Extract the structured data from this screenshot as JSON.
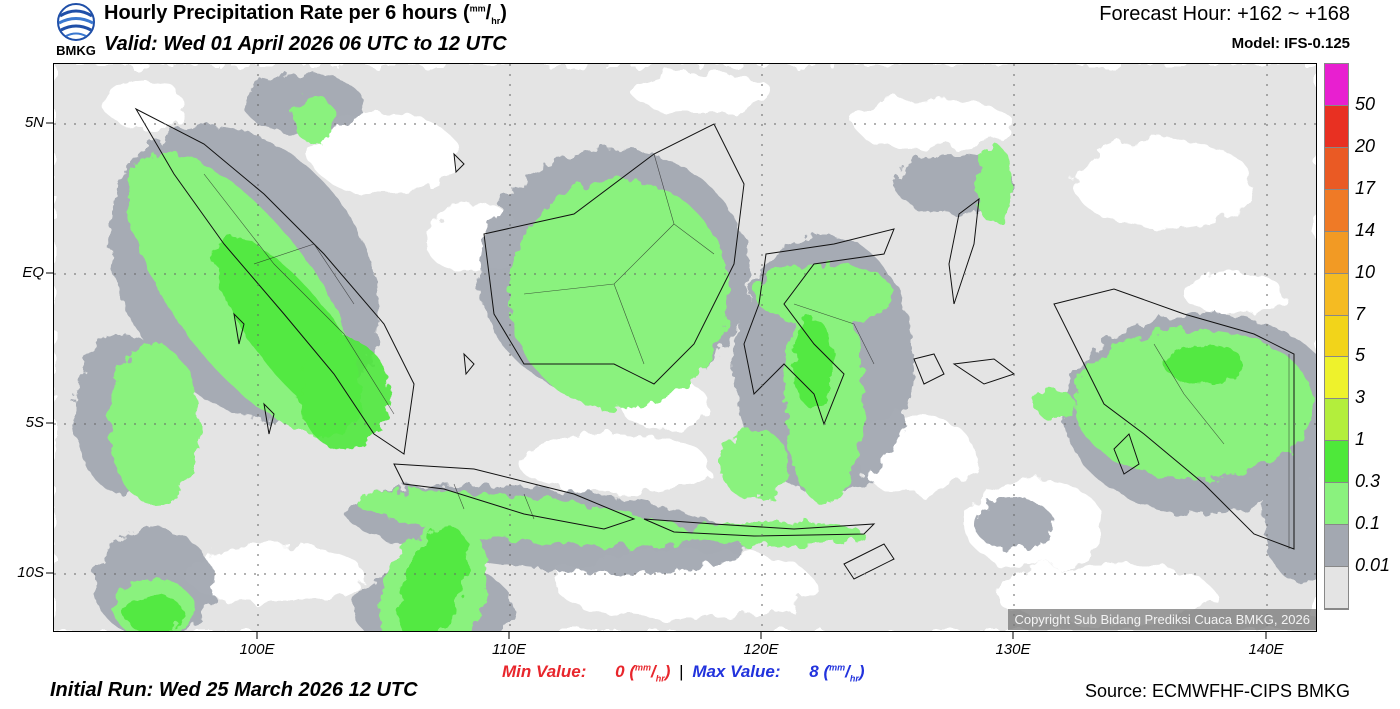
{
  "header": {
    "title": "Hourly Precipitation Rate per 6 hours",
    "title_unit_num": "mm",
    "title_unit_den": "hr",
    "valid": "Valid: Wed 01 April 2026 06 UTC to 12 UTC",
    "forecast_hour": "Forecast Hour: +162 ~ +168",
    "model": "Model: IFS-0.125",
    "logo_text": "BMKG"
  },
  "map": {
    "lat_labels": [
      "5N",
      "EQ",
      "5S",
      "10S"
    ],
    "lon_labels": [
      "100E",
      "110E",
      "120E",
      "130E",
      "140E"
    ],
    "copyright": "Copyright Sub Bidang Prediksi Cuaca BMKG, 2026"
  },
  "colorbar": {
    "labels": [
      "50",
      "20",
      "17",
      "14",
      "10",
      "7",
      "5",
      "3",
      "1",
      "0.3",
      "0.1",
      "0.01"
    ],
    "colors": [
      "#e81fd0",
      "#e83022",
      "#ea5a24",
      "#ef7a26",
      "#f29a24",
      "#f5bb22",
      "#f2d41a",
      "#eef22c",
      "#b3ee3c",
      "#4ee83a",
      "#8af27e",
      "#a3a8b1",
      "#e4e4e4"
    ]
  },
  "footer": {
    "min_label": "Min Value:",
    "min_value": "0",
    "max_label": "Max Value:",
    "max_value": "8",
    "unit_num": "mm",
    "unit_den": "hr",
    "initial_run": "Initial Run: Wed 25 March 2026 12 UTC",
    "source": "Source: ECMWFHF-CIPS BMKG"
  }
}
